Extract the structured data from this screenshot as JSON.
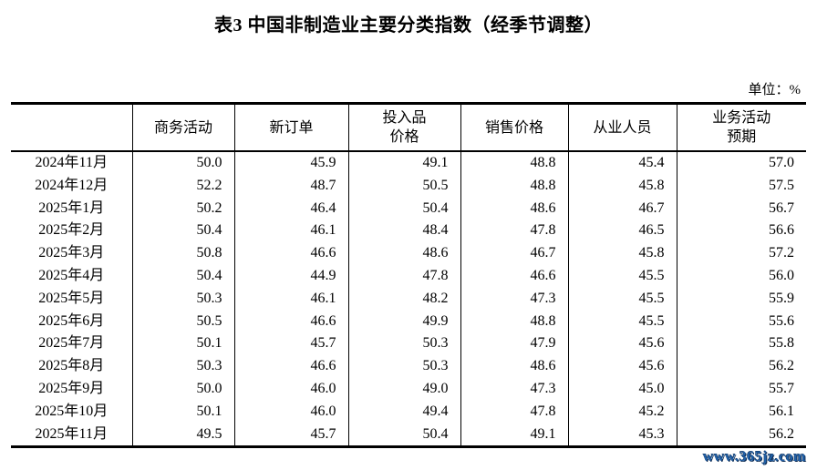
{
  "page": {
    "title": "表3 中国非制造业主要分类指数（经季节调整）",
    "unit_label": "单位：%",
    "watermark": "www.365jz.com"
  },
  "colors": {
    "text": "#000000",
    "border": "#000000",
    "watermark_fill": "#2060a8",
    "watermark_outline": "#0c2b52"
  },
  "table": {
    "corner_label": "",
    "columns": [
      "商务活动",
      "新订单",
      "投入品\n价格",
      "销售价格",
      "从业人员",
      "业务活动\n预期"
    ],
    "rows": [
      {
        "month": "2024年11月",
        "values": [
          "50.0",
          "45.9",
          "49.1",
          "48.8",
          "45.4",
          "57.0"
        ]
      },
      {
        "month": "2024年12月",
        "values": [
          "52.2",
          "48.7",
          "50.5",
          "48.8",
          "45.8",
          "57.5"
        ]
      },
      {
        "month": "2025年1月",
        "values": [
          "50.2",
          "46.4",
          "50.4",
          "48.6",
          "46.7",
          "56.7"
        ]
      },
      {
        "month": "2025年2月",
        "values": [
          "50.4",
          "46.1",
          "48.4",
          "47.8",
          "46.5",
          "56.6"
        ]
      },
      {
        "month": "2025年3月",
        "values": [
          "50.8",
          "46.6",
          "48.6",
          "46.7",
          "45.8",
          "57.2"
        ]
      },
      {
        "month": "2025年4月",
        "values": [
          "50.4",
          "44.9",
          "47.8",
          "46.6",
          "45.5",
          "56.0"
        ]
      },
      {
        "month": "2025年5月",
        "values": [
          "50.3",
          "46.1",
          "48.2",
          "47.3",
          "45.5",
          "55.9"
        ]
      },
      {
        "month": "2025年6月",
        "values": [
          "50.5",
          "46.6",
          "49.9",
          "48.8",
          "45.5",
          "55.6"
        ]
      },
      {
        "month": "2025年7月",
        "values": [
          "50.1",
          "45.7",
          "50.3",
          "47.9",
          "45.6",
          "55.8"
        ]
      },
      {
        "month": "2025年8月",
        "values": [
          "50.3",
          "46.6",
          "50.3",
          "48.6",
          "45.6",
          "56.2"
        ]
      },
      {
        "month": "2025年9月",
        "values": [
          "50.0",
          "46.0",
          "49.0",
          "47.3",
          "45.0",
          "55.7"
        ]
      },
      {
        "month": "2025年10月",
        "values": [
          "50.1",
          "46.0",
          "49.4",
          "47.8",
          "45.2",
          "56.1"
        ]
      },
      {
        "month": "2025年11月",
        "values": [
          "49.5",
          "45.7",
          "50.4",
          "49.1",
          "45.3",
          "56.2"
        ]
      }
    ]
  }
}
